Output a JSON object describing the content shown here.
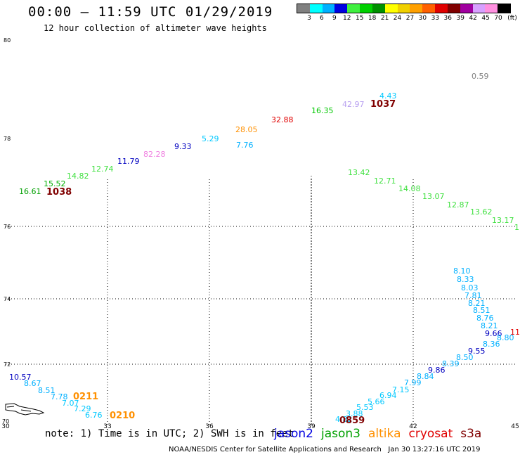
{
  "title": "00:00 – 11:59 UTC 01/29/2019",
  "subtitle": "12 hour collection of altimeter wave heights",
  "colorbar": {
    "colors": [
      "#808080",
      "#00ffff",
      "#00b0ff",
      "#0000e0",
      "#40f040",
      "#00d000",
      "#009000",
      "#ffff00",
      "#f0d000",
      "#ffa000",
      "#ff6000",
      "#e00000",
      "#800000",
      "#a000a0",
      "#d8a0ff",
      "#ff90e0",
      "#000000"
    ],
    "labels": [
      "3",
      "6",
      "9",
      "12",
      "15",
      "18",
      "21",
      "24",
      "27",
      "30",
      "33",
      "36",
      "39",
      "42",
      "45",
      "70",
      "(ft)"
    ]
  },
  "axes": {
    "lat_labels": [
      "80",
      "78",
      "76",
      "74",
      "72",
      "70"
    ],
    "lon_labels": [
      "30",
      "33",
      "36",
      "39",
      "42",
      "45"
    ]
  },
  "observations": [
    {
      "value": "0.59",
      "color": "#808080"
    },
    {
      "value": "4.43",
      "color": "#00c8ff"
    },
    {
      "value": "42.97",
      "color": "#b8a0f0"
    },
    {
      "value": "16.35",
      "color": "#00c800"
    },
    {
      "value": "32.88",
      "color": "#e00000"
    },
    {
      "value": "28.05",
      "color": "#ff9000"
    },
    {
      "value": "5.29",
      "color": "#00c8ff"
    },
    {
      "value": "7.76",
      "color": "#00b0ff"
    },
    {
      "value": "9.33",
      "color": "#0000c0"
    },
    {
      "value": "82.28",
      "color": "#f080e0"
    },
    {
      "value": "11.79",
      "color": "#0000c0"
    },
    {
      "value": "12.74",
      "color": "#40e040"
    },
    {
      "value": "14.82",
      "color": "#40e040"
    },
    {
      "value": "15.52",
      "color": "#00b000"
    },
    {
      "value": "16.61",
      "color": "#00a000"
    },
    {
      "value": "13.42",
      "color": "#40e040"
    },
    {
      "value": "12.71",
      "color": "#40e040"
    },
    {
      "value": "14.08",
      "color": "#40e040"
    },
    {
      "value": "13.07",
      "color": "#40e040"
    },
    {
      "value": "12.87",
      "color": "#40e040"
    },
    {
      "value": "13.62",
      "color": "#40e040"
    },
    {
      "value": "13.17",
      "color": "#40e040"
    },
    {
      "value": "1",
      "color": "#40e040"
    },
    {
      "value": "8.10",
      "color": "#00b0ff"
    },
    {
      "value": "8.33",
      "color": "#00b0ff"
    },
    {
      "value": "8.03",
      "color": "#00b0ff"
    },
    {
      "value": "7.81",
      "color": "#00b0ff"
    },
    {
      "value": "8.21",
      "color": "#00b0ff"
    },
    {
      "value": "8.51",
      "color": "#00b0ff"
    },
    {
      "value": "8.76",
      "color": "#00b0ff"
    },
    {
      "value": "8.21",
      "color": "#00b0ff"
    },
    {
      "value": "9.66",
      "color": "#0000c0"
    },
    {
      "value": "8.80",
      "color": "#00b0ff"
    },
    {
      "value": "8.36",
      "color": "#00b0ff"
    },
    {
      "value": "9.55",
      "color": "#0000c0"
    },
    {
      "value": "8.50",
      "color": "#00b0ff"
    },
    {
      "value": "8.39",
      "color": "#00b0ff"
    },
    {
      "value": "9.86",
      "color": "#0000c0"
    },
    {
      "value": "8.84",
      "color": "#00b0ff"
    },
    {
      "value": "7.99",
      "color": "#00b0ff"
    },
    {
      "value": "7.15",
      "color": "#00c8ff"
    },
    {
      "value": "6.94",
      "color": "#00c8ff"
    },
    {
      "value": "5.66",
      "color": "#00c8ff"
    },
    {
      "value": "5.53",
      "color": "#00c8ff"
    },
    {
      "value": "3.88",
      "color": "#00c8ff"
    },
    {
      "value": "4.82",
      "color": "#00c8ff"
    },
    {
      "value": "10.57",
      "color": "#0000c0"
    },
    {
      "value": "8.67",
      "color": "#00b0ff"
    },
    {
      "value": "8.51",
      "color": "#00b0ff"
    },
    {
      "value": "7.78",
      "color": "#00b0ff"
    },
    {
      "value": "7.07",
      "color": "#00c8ff"
    },
    {
      "value": "7.29",
      "color": "#00c8ff"
    },
    {
      "value": "6.76",
      "color": "#00c8ff"
    },
    {
      "value": "11",
      "color": "#e00000"
    }
  ],
  "time_labels": [
    {
      "value": "1037",
      "color": "#800000"
    },
    {
      "value": "1038",
      "color": "#800000"
    },
    {
      "value": "0211",
      "color": "#ff9000"
    },
    {
      "value": "0210",
      "color": "#ff9000"
    },
    {
      "value": "0859",
      "color": "#800000"
    }
  ],
  "note": "note: 1) Time is in UTC; 2) SWH is in feet",
  "satellites": [
    {
      "name": "jason2",
      "color": "#0000e0"
    },
    {
      "name": "jason3",
      "color": "#00a000"
    },
    {
      "name": "altika",
      "color": "#ff9000"
    },
    {
      "name": "cryosat",
      "color": "#e00000"
    },
    {
      "name": "s3a",
      "color": "#800000"
    }
  ],
  "credit": "NOAA/NESDIS Center for Satellite Applications and Research   Jan 30 13:27:16 UTC 2019"
}
